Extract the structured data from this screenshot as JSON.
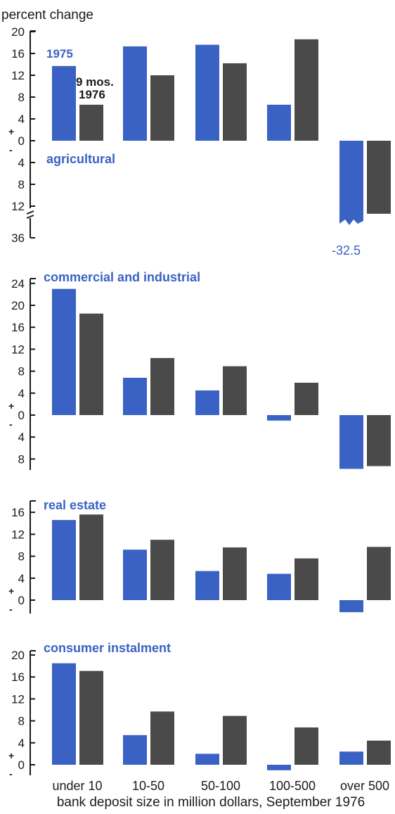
{
  "colors": {
    "series_1975": "#3a62c4",
    "series_1976": "#4a4a4a",
    "panel_title": "#3a62c4",
    "text": "#1a1a1a"
  },
  "y_axis_title": "percent change",
  "x_axis_title": "bank deposit size in million dollars, September 1976",
  "legend": {
    "s1975": "1975",
    "s1976_line1": "9 mos.",
    "s1976_line2": "1976"
  },
  "annotation": "-32.5",
  "chart_data": [
    {
      "type": "bar",
      "title": "agricultural",
      "categories": [
        "under 10",
        "10-50",
        "50-100",
        "100-500",
        "over 500"
      ],
      "series": [
        {
          "name": "1975",
          "values": [
            13.7,
            17.3,
            17.6,
            6.6,
            -32.5
          ]
        },
        {
          "name": "9 mos. 1976",
          "values": [
            6.6,
            12.0,
            14.2,
            18.6,
            -13.4
          ]
        }
      ],
      "ylim": [
        -14.5,
        20
      ],
      "yticks": [
        20,
        16,
        12,
        8,
        4,
        0,
        -4,
        -8,
        -12
      ],
      "ytick_labels": [
        "20",
        "16",
        "12",
        "8",
        "4",
        "0",
        "4",
        "8",
        "12"
      ],
      "axis_break": {
        "label": "36"
      },
      "grid": false,
      "legend": "top-left"
    },
    {
      "type": "bar",
      "title": "commercial and industrial",
      "categories": [
        "under 10",
        "10-50",
        "50-100",
        "100-500",
        "over 500"
      ],
      "series": [
        {
          "name": "1975",
          "values": [
            23.0,
            6.8,
            4.5,
            -1.0,
            -9.8
          ]
        },
        {
          "name": "9 mos. 1976",
          "values": [
            18.5,
            10.4,
            8.9,
            5.9,
            -9.3
          ]
        }
      ],
      "ylim": [
        -10,
        24
      ],
      "yticks": [
        24,
        20,
        16,
        12,
        8,
        4,
        0,
        -4,
        -8
      ],
      "ytick_labels": [
        "24",
        "20",
        "16",
        "12",
        "8",
        "4",
        "0",
        "4",
        "8"
      ],
      "grid": false
    },
    {
      "type": "bar",
      "title": "real estate",
      "categories": [
        "under 10",
        "10-50",
        "50-100",
        "100-500",
        "over 500"
      ],
      "series": [
        {
          "name": "1975",
          "values": [
            14.6,
            9.2,
            5.3,
            4.8,
            -2.2
          ]
        },
        {
          "name": "9 mos. 1976",
          "values": [
            15.6,
            11.0,
            9.6,
            7.6,
            9.7
          ]
        }
      ],
      "ylim": [
        -2,
        16
      ],
      "yticks": [
        16,
        12,
        8,
        4,
        0
      ],
      "ytick_labels": [
        "16",
        "12",
        "8",
        "4",
        "0"
      ],
      "grid": false
    },
    {
      "type": "bar",
      "title": "consumer instalment",
      "categories": [
        "under 10",
        "10-50",
        "50-100",
        "100-500",
        "over 500"
      ],
      "series": [
        {
          "name": "1975",
          "values": [
            18.5,
            5.4,
            2.0,
            -1.0,
            2.4
          ]
        },
        {
          "name": "9 mos. 1976",
          "values": [
            17.1,
            9.7,
            8.9,
            6.8,
            4.4
          ]
        }
      ],
      "ylim": [
        -2,
        20
      ],
      "yticks": [
        20,
        16,
        12,
        8,
        4,
        0
      ],
      "ytick_labels": [
        "20",
        "16",
        "12",
        "8",
        "4",
        "0"
      ],
      "grid": false
    }
  ]
}
